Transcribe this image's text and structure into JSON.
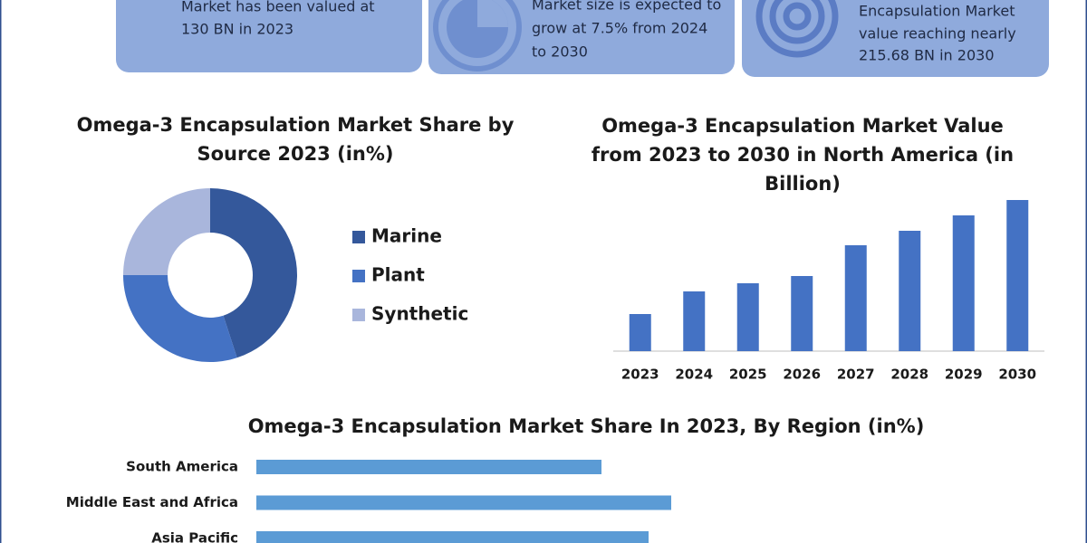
{
  "cards": [
    {
      "lines": [
        "Market has been valued at",
        "130 BN in 2023"
      ]
    },
    {
      "lines": [
        "Market size is expected to",
        "grow at 7.5% from 2024",
        "to 2030"
      ]
    },
    {
      "lines": [
        "Encapsulation Market",
        "value reaching nearly",
        "215.68 BN in 2030"
      ]
    }
  ],
  "chart_data": [
    {
      "type": "donut",
      "title": [
        "Omega-3 Encapsulation Market Share by",
        "Source 2023 (in%)"
      ],
      "categories": [
        "Marine",
        "Plant",
        "Synthetic"
      ],
      "values": [
        45,
        30,
        25
      ],
      "colors": [
        "#34589b",
        "#4472c4",
        "#a9b6dc"
      ]
    },
    {
      "type": "bar",
      "title": [
        "Omega-3 Encapsulation Market Value",
        "from 2023 to 2030 in North America (in",
        "Billion)"
      ],
      "categories": [
        "2023",
        "2024",
        "2025",
        "2026",
        "2027",
        "2028",
        "2029",
        "2030"
      ],
      "values": [
        41,
        66,
        75,
        83,
        117,
        133,
        150,
        167
      ],
      "color": "#4472c4"
    },
    {
      "type": "hbar",
      "title": [
        "Omega-3 Encapsulation Market Share In 2023, By Region (in%)"
      ],
      "categories": [
        "South America",
        "Middle East and Africa",
        "Asia Pacific"
      ],
      "values": [
        381,
        458,
        433
      ],
      "color": "#5b9bd5"
    }
  ]
}
